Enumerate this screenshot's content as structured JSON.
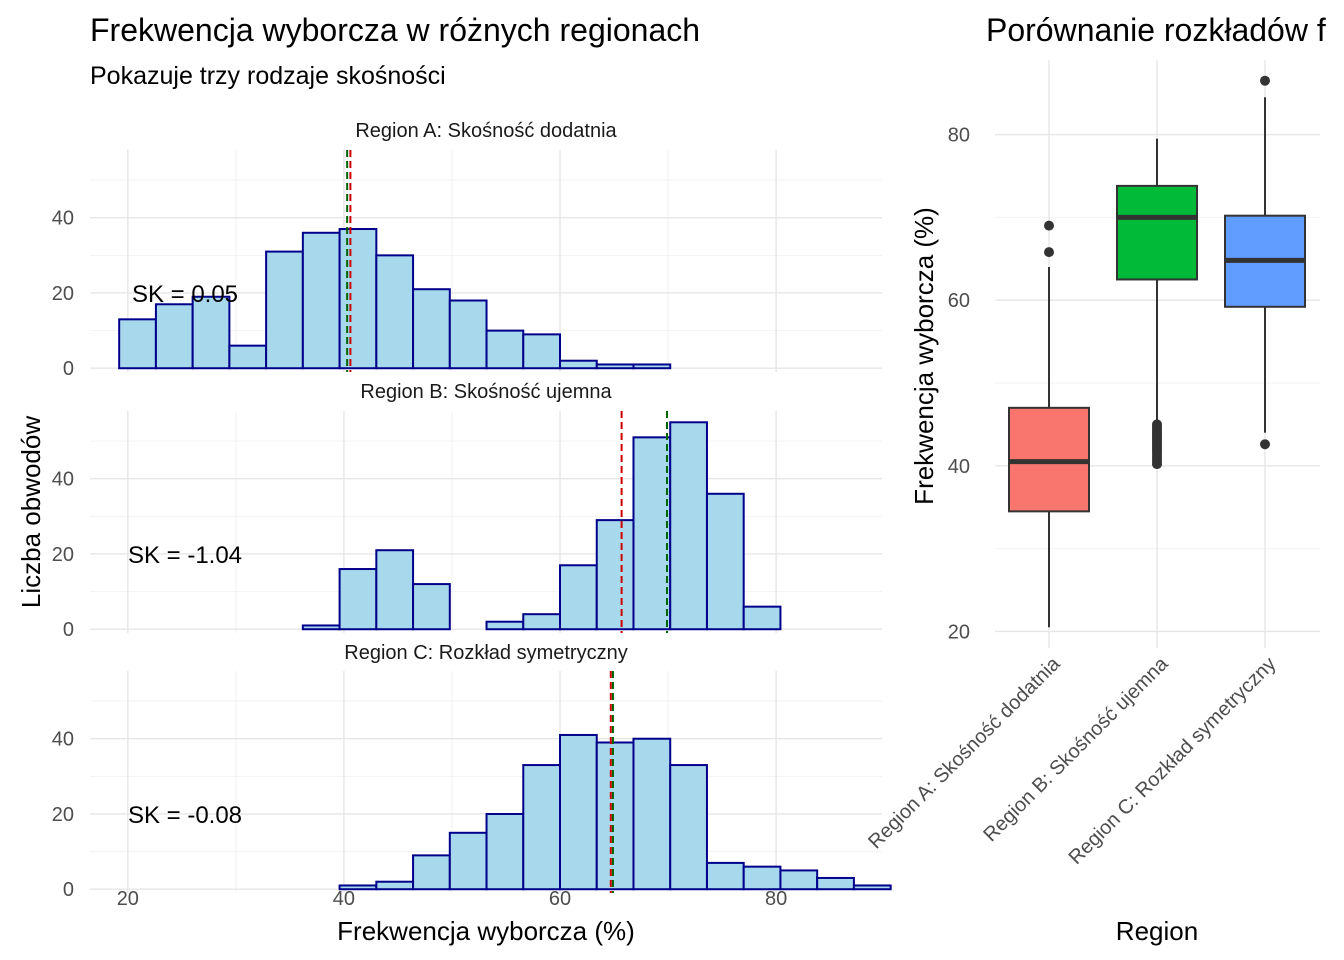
{
  "left": {
    "title": "Frekwencja wyborcza w różnych regionach",
    "subtitle": "Pokazuje trzy rodzaje skośności",
    "xlabel": "Frekwencja wyborcza (%)",
    "ylabel": "Liczba obwodów"
  },
  "right": {
    "title": "Porównanie rozkładów f",
    "xlabel": "Region",
    "ylabel": "Frekwencja wyborcza (%)"
  },
  "chart_data": [
    {
      "type": "bar",
      "facets": [
        {
          "strip": "Region A: Skośność dodatnia",
          "sk_label": "SK = 0.05",
          "bin_starts": [
            19.2,
            22.6,
            26.0,
            29.4,
            32.8,
            36.2,
            39.6,
            43.0,
            46.4,
            49.8,
            53.2,
            56.6,
            60.0,
            63.4,
            66.8,
            70.2,
            73.6,
            77.0,
            80.4,
            83.8,
            87.2
          ],
          "counts": [
            13,
            17,
            19,
            6,
            31,
            36,
            37,
            30,
            21,
            18,
            10,
            9,
            2,
            1,
            1,
            0,
            0,
            0,
            0,
            0,
            0
          ],
          "mean": 40.6,
          "median": 40.3
        },
        {
          "strip": "Region B: Skośność ujemna",
          "sk_label": "SK = -1.04",
          "bin_starts": [
            19.2,
            22.6,
            26.0,
            29.4,
            32.8,
            36.2,
            39.6,
            43.0,
            46.4,
            49.8,
            53.2,
            56.6,
            60.0,
            63.4,
            66.8,
            70.2,
            73.6,
            77.0,
            80.4,
            83.8,
            87.2
          ],
          "counts": [
            0,
            0,
            0,
            0,
            0,
            1,
            16,
            21,
            12,
            0,
            2,
            4,
            17,
            29,
            51,
            55,
            36,
            6,
            0,
            0,
            0
          ],
          "mean": 65.7,
          "median": 69.9
        },
        {
          "strip": "Region C: Rozkład symetryczny",
          "sk_label": "SK = -0.08",
          "bin_starts": [
            19.2,
            22.6,
            26.0,
            29.4,
            32.8,
            36.2,
            39.6,
            43.0,
            46.4,
            49.8,
            53.2,
            56.6,
            60.0,
            63.4,
            66.8,
            70.2,
            73.6,
            77.0,
            80.4,
            83.8,
            87.2
          ],
          "counts": [
            0,
            0,
            0,
            0,
            0,
            0,
            1,
            2,
            9,
            15,
            20,
            33,
            41,
            39,
            40,
            33,
            7,
            6,
            5,
            3,
            1
          ],
          "mean": 64.7,
          "median": 64.9
        }
      ],
      "bin_width": 3.4,
      "x_ticks": [
        20,
        40,
        60,
        80
      ],
      "y_ticks": [
        0,
        20,
        40
      ],
      "xlim": [
        16.5,
        89.8
      ],
      "ylim": [
        -1,
        58
      ],
      "colors": {
        "fill": "#a8d8ec",
        "outline": "#00008b",
        "mean_line": "#cc0000",
        "median_line": "#006400"
      }
    },
    {
      "type": "box",
      "categories": [
        "Region A: Skośność dodatnia",
        "Region B: Skośność ujemna",
        "Region C: Rozkład symetryczny"
      ],
      "boxes": [
        {
          "lower": 20.5,
          "q1": 34.5,
          "median": 40.5,
          "q3": 47.0,
          "upper": 64.0,
          "outliers": [
            65.8,
            69.0
          ],
          "color": "#f8766d"
        },
        {
          "lower": 45.5,
          "q1": 62.5,
          "median": 70.0,
          "q3": 73.8,
          "upper": 79.5,
          "outliers": [
            40.2,
            40.5,
            40.8,
            41.1,
            41.4,
            41.7,
            42.0,
            42.3,
            42.6,
            42.9,
            43.2,
            43.5,
            43.8,
            44.1,
            44.4,
            44.7,
            45.0
          ],
          "color": "#00ba38"
        },
        {
          "lower": 44.0,
          "q1": 59.2,
          "median": 64.8,
          "q3": 70.2,
          "upper": 84.5,
          "outliers": [
            42.6,
            86.5
          ],
          "color": "#619cff"
        }
      ],
      "y_ticks": [
        20,
        40,
        60,
        80
      ],
      "ylim": [
        18,
        89
      ]
    }
  ]
}
